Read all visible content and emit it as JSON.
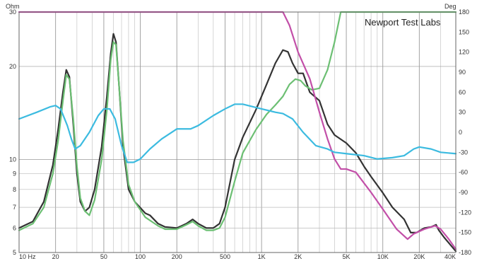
{
  "chart_data": {
    "type": "line",
    "title": "",
    "annotation": "Newport Test Labs",
    "left_unit": "Ohm",
    "right_unit": "Deg",
    "x_scale": "log",
    "xlim": [
      10,
      40000
    ],
    "ylim_left": [
      5,
      30
    ],
    "y_scale_left": "log",
    "ylim_right": [
      -180,
      180
    ],
    "grid": true,
    "x_ticks": [
      {
        "value": 10,
        "label": "10 Hz"
      },
      {
        "value": 20,
        "label": "20"
      },
      {
        "value": 50,
        "label": "50"
      },
      {
        "value": 100,
        "label": "100"
      },
      {
        "value": 200,
        "label": "200"
      },
      {
        "value": 500,
        "label": "500"
      },
      {
        "value": 1000,
        "label": "1K"
      },
      {
        "value": 2000,
        "label": "2K"
      },
      {
        "value": 5000,
        "label": "5K"
      },
      {
        "value": 10000,
        "label": "10K"
      },
      {
        "value": 20000,
        "label": "20K"
      },
      {
        "value": 40000,
        "label": "40K"
      }
    ],
    "y_left_ticks": [
      {
        "value": 30,
        "label": "30"
      },
      {
        "value": 20,
        "label": "20"
      },
      {
        "value": 10,
        "label": "10"
      },
      {
        "value": 9,
        "label": "9"
      },
      {
        "value": 8,
        "label": "8"
      },
      {
        "value": 7,
        "label": "7"
      },
      {
        "value": 6,
        "label": "6"
      },
      {
        "value": 5,
        "label": "5"
      }
    ],
    "y_right_ticks": [
      {
        "value": 180,
        "label": "180"
      },
      {
        "value": 150,
        "label": "150"
      },
      {
        "value": 120,
        "label": "120"
      },
      {
        "value": 90,
        "label": "90"
      },
      {
        "value": 60,
        "label": "60"
      },
      {
        "value": 30,
        "label": "30"
      },
      {
        "value": 0,
        "label": "0"
      },
      {
        "value": -30,
        "label": "-30"
      },
      {
        "value": -60,
        "label": "-60"
      },
      {
        "value": -90,
        "label": "-90"
      },
      {
        "value": -120,
        "label": "-120"
      },
      {
        "value": -150,
        "label": "-150"
      },
      {
        "value": -180,
        "label": "-180"
      }
    ],
    "colors": {
      "black": "#333333",
      "green": "#6cbf73",
      "magenta": "#c24fa8",
      "cyan": "#3cbbe0",
      "grid": "#bbbbbb"
    },
    "series": [
      {
        "color": "black",
        "axis": "left",
        "points": [
          [
            10,
            6.0
          ],
          [
            13,
            6.3
          ],
          [
            16,
            7.3
          ],
          [
            19,
            9.6
          ],
          [
            21,
            12.5
          ],
          [
            23,
            16.5
          ],
          [
            24.5,
            19.5
          ],
          [
            26,
            18.5
          ],
          [
            28,
            13.0
          ],
          [
            30,
            9.0
          ],
          [
            32,
            7.3
          ],
          [
            35,
            6.8
          ],
          [
            38,
            7.0
          ],
          [
            42,
            8.0
          ],
          [
            48,
            11.0
          ],
          [
            53,
            16.0
          ],
          [
            57,
            22.0
          ],
          [
            60,
            25.5
          ],
          [
            63,
            24.0
          ],
          [
            67,
            17.0
          ],
          [
            72,
            11.0
          ],
          [
            80,
            8.0
          ],
          [
            90,
            7.3
          ],
          [
            110,
            6.7
          ],
          [
            120,
            6.6
          ],
          [
            140,
            6.2
          ],
          [
            160,
            6.05
          ],
          [
            200,
            6.0
          ],
          [
            240,
            6.2
          ],
          [
            270,
            6.4
          ],
          [
            300,
            6.2
          ],
          [
            350,
            6.0
          ],
          [
            400,
            6.0
          ],
          [
            450,
            6.2
          ],
          [
            500,
            7.0
          ],
          [
            600,
            10.0
          ],
          [
            700,
            11.8
          ],
          [
            900,
            14.5
          ],
          [
            1100,
            17.5
          ],
          [
            1300,
            20.5
          ],
          [
            1500,
            22.6
          ],
          [
            1650,
            22.3
          ],
          [
            1800,
            20.5
          ],
          [
            2000,
            19.0
          ],
          [
            2200,
            19.0
          ],
          [
            2500,
            16.5
          ],
          [
            3000,
            15.5
          ],
          [
            3500,
            13.0
          ],
          [
            4000,
            12.0
          ],
          [
            5000,
            11.3
          ],
          [
            6000,
            10.5
          ],
          [
            7000,
            9.5
          ],
          [
            8000,
            8.8
          ],
          [
            10000,
            7.8
          ],
          [
            12000,
            7.0
          ],
          [
            15000,
            6.4
          ],
          [
            17000,
            5.8
          ],
          [
            19000,
            5.8
          ],
          [
            22000,
            6.0
          ],
          [
            25000,
            6.05
          ],
          [
            27500,
            6.15
          ],
          [
            29000,
            5.9
          ],
          [
            32000,
            5.6
          ],
          [
            36000,
            5.3
          ],
          [
            40000,
            5.05
          ]
        ]
      },
      {
        "color": "green",
        "axis": "left",
        "points": [
          [
            10,
            5.9
          ],
          [
            13,
            6.2
          ],
          [
            16,
            7.0
          ],
          [
            19,
            9.0
          ],
          [
            21,
            11.5
          ],
          [
            23,
            15.5
          ],
          [
            24.5,
            18.8
          ],
          [
            26,
            18.2
          ],
          [
            28,
            13.5
          ],
          [
            30,
            9.5
          ],
          [
            32,
            7.5
          ],
          [
            35,
            6.8
          ],
          [
            38,
            6.6
          ],
          [
            42,
            7.4
          ],
          [
            48,
            10.0
          ],
          [
            53,
            14.5
          ],
          [
            57,
            21.0
          ],
          [
            60,
            24.0
          ],
          [
            63,
            23.5
          ],
          [
            67,
            17.0
          ],
          [
            72,
            11.5
          ],
          [
            80,
            8.3
          ],
          [
            90,
            7.3
          ],
          [
            110,
            6.5
          ],
          [
            140,
            6.1
          ],
          [
            160,
            5.95
          ],
          [
            200,
            5.95
          ],
          [
            240,
            6.15
          ],
          [
            270,
            6.3
          ],
          [
            300,
            6.1
          ],
          [
            350,
            5.9
          ],
          [
            400,
            5.9
          ],
          [
            450,
            6.0
          ],
          [
            500,
            6.5
          ],
          [
            600,
            8.5
          ],
          [
            700,
            10.5
          ],
          [
            900,
            12.5
          ],
          [
            1100,
            14.0
          ],
          [
            1300,
            15.0
          ],
          [
            1500,
            16.0
          ],
          [
            1700,
            17.5
          ],
          [
            1900,
            18.2
          ],
          [
            2100,
            18.0
          ],
          [
            2300,
            17.3
          ],
          [
            2600,
            16.8
          ],
          [
            3000,
            17.0
          ],
          [
            3500,
            19.5
          ],
          [
            4000,
            24.0
          ],
          [
            4500,
            30.0
          ],
          [
            40000,
            30.0
          ]
        ]
      },
      {
        "color": "magenta",
        "axis": "right",
        "points": [
          [
            10,
            180
          ],
          [
            1500,
            180
          ],
          [
            1700,
            160
          ],
          [
            2000,
            120
          ],
          [
            2500,
            80
          ],
          [
            3000,
            30
          ],
          [
            3500,
            -10
          ],
          [
            4000,
            -40
          ],
          [
            4500,
            -55
          ],
          [
            5000,
            -55
          ],
          [
            6000,
            -60
          ],
          [
            8000,
            -90
          ],
          [
            10000,
            -115
          ],
          [
            13000,
            -145
          ],
          [
            16000,
            -160
          ],
          [
            18000,
            -152
          ],
          [
            22000,
            -145
          ],
          [
            27000,
            -140
          ],
          [
            30000,
            -145
          ],
          [
            35000,
            -160
          ],
          [
            40000,
            -175
          ]
        ]
      },
      {
        "color": "cyan",
        "axis": "right",
        "points": [
          [
            10,
            20
          ],
          [
            14,
            30
          ],
          [
            18,
            38
          ],
          [
            20,
            40
          ],
          [
            22,
            35
          ],
          [
            25,
            10
          ],
          [
            27,
            -10
          ],
          [
            29,
            -25
          ],
          [
            32,
            -20
          ],
          [
            38,
            0
          ],
          [
            45,
            25
          ],
          [
            50,
            35
          ],
          [
            56,
            35
          ],
          [
            62,
            20
          ],
          [
            70,
            -20
          ],
          [
            78,
            -45
          ],
          [
            88,
            -45
          ],
          [
            100,
            -40
          ],
          [
            120,
            -25
          ],
          [
            150,
            -10
          ],
          [
            200,
            5
          ],
          [
            260,
            5
          ],
          [
            300,
            10
          ],
          [
            400,
            25
          ],
          [
            500,
            35
          ],
          [
            600,
            42
          ],
          [
            700,
            42
          ],
          [
            1000,
            35
          ],
          [
            1300,
            30
          ],
          [
            1500,
            28
          ],
          [
            1800,
            20
          ],
          [
            2200,
            0
          ],
          [
            2800,
            -20
          ],
          [
            3500,
            -25
          ],
          [
            4000,
            -30
          ],
          [
            5000,
            -32
          ],
          [
            7000,
            -35
          ],
          [
            9000,
            -40
          ],
          [
            12000,
            -38
          ],
          [
            15000,
            -35
          ],
          [
            18000,
            -25
          ],
          [
            20000,
            -22
          ],
          [
            25000,
            -25
          ],
          [
            30000,
            -30
          ],
          [
            40000,
            -32
          ]
        ]
      }
    ]
  }
}
